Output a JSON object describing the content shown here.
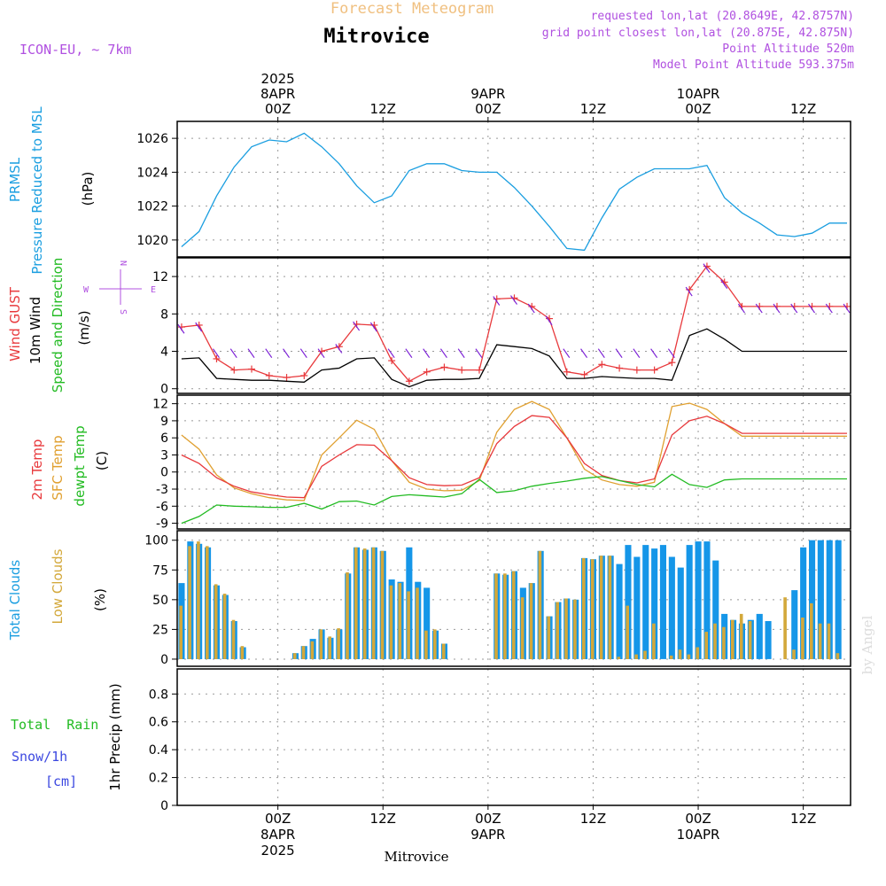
{
  "header": {
    "overlay_title": "Forecast Meteogram",
    "location": "Mitrovice",
    "model": "ICON-EU,  ~ 7km",
    "requested": "requested lon,lat (20.8649E, 42.8757N)",
    "grid_point": "grid point closest lon,lat (20.875E, 42.875N)",
    "point_altitude": "Point Altitude 520m",
    "model_altitude": "Model Point Altitude 593.375m",
    "footer_location": "Mitrovice",
    "watermark": "by Angel"
  },
  "time_axis": {
    "top_labels": [
      {
        "hour": 0,
        "lines": [
          "2025",
          "8APR",
          "00Z"
        ]
      },
      {
        "hour": 12,
        "lines": [
          "12Z"
        ]
      },
      {
        "hour": 24,
        "lines": [
          "9APR",
          "00Z"
        ]
      },
      {
        "hour": 36,
        "lines": [
          "12Z"
        ]
      },
      {
        "hour": 48,
        "lines": [
          "10APR",
          "00Z"
        ]
      },
      {
        "hour": 60,
        "lines": [
          "12Z"
        ]
      }
    ],
    "bottom_labels": [
      {
        "hour": 0,
        "lines": [
          "00Z",
          "8APR",
          "2025"
        ]
      },
      {
        "hour": 12,
        "lines": [
          "12Z"
        ]
      },
      {
        "hour": 24,
        "lines": [
          "00Z",
          "9APR"
        ]
      },
      {
        "hour": 36,
        "lines": [
          "12Z"
        ]
      },
      {
        "hour": 48,
        "lines": [
          "00Z",
          "10APR"
        ]
      },
      {
        "hour": 60,
        "lines": [
          "12Z"
        ]
      }
    ]
  },
  "panels": {
    "pressure": {
      "labels": [
        "PRMSL",
        "Pressure Reduced to MSL"
      ],
      "unit": "(hPa)",
      "yticks": [
        "1020",
        "1022",
        "1024",
        "1026"
      ]
    },
    "wind": {
      "labels": [
        "Wind GUST",
        "10m Wind",
        "Speed and Direction"
      ],
      "unit": "(m/s)",
      "yticks": [
        "0",
        "4",
        "8",
        "12"
      ],
      "compass": {
        "n": "N",
        "s": "S",
        "w": "W",
        "e": "E"
      }
    },
    "temp": {
      "labels": [
        "2m Temp",
        "SFC Temp",
        "dewpt Temp"
      ],
      "unit": "(C)",
      "yticks": [
        "-9",
        "-6",
        "-3",
        "0",
        "3",
        "6",
        "9",
        "12"
      ]
    },
    "clouds": {
      "labels": [
        "Total Clouds",
        "Low Clouds"
      ],
      "unit": "(%)",
      "yticks": [
        "0",
        "25",
        "50",
        "75",
        "100"
      ]
    },
    "precip": {
      "labels": [
        "Total  Rain",
        "Snow/1h",
        "[cm]"
      ],
      "unit": "1hr Precip (mm)",
      "yticks": [
        "0",
        "0.2",
        "0.4",
        "0.6",
        "0.8"
      ]
    }
  },
  "colors": {
    "pressure": "#1a9ee0",
    "gust": "#e8393c",
    "wind": "#000000",
    "arrow": "#7b1fd6",
    "temp2m": "#e8393c",
    "sfc": "#e0a030",
    "dewpt": "#22bb22",
    "total_cloud": "#1596e8",
    "low_cloud": "#d3a83a",
    "title_overlay": "#f0c080",
    "info": "#b050e0",
    "rain_label": "#22bb22",
    "snow_label": "#3c48e0"
  },
  "chart_data": [
    {
      "type": "line",
      "title": "PRMSL Pressure Reduced to MSL",
      "ylabel": "(hPa)",
      "ylim": [
        1019,
        1027
      ],
      "x_hours": [
        -11,
        -9,
        -7,
        -5,
        -3,
        -1,
        1,
        3,
        5,
        7,
        9,
        11,
        13,
        15,
        17,
        19,
        21,
        23,
        25,
        27,
        29,
        31,
        33,
        35,
        37,
        39,
        41,
        43,
        45,
        47,
        49,
        51,
        53,
        55,
        57,
        59,
        61,
        63,
        65
      ],
      "series": [
        {
          "values": [
            1019.6,
            1020.5,
            1022.6,
            1024.3,
            1025.5,
            1025.9,
            1025.8,
            1026.3,
            1025.5,
            1024.5,
            1023.2,
            1022.2,
            1022.6,
            1024.1,
            1024.5,
            1024.5,
            1024.1,
            1024.0,
            1024.0,
            1023.1,
            1022.0,
            1020.8,
            1019.5,
            1019.4,
            1021.3,
            1023.0,
            1023.7,
            1024.2,
            1024.2,
            1024.2,
            1024.4,
            1022.5,
            1021.6,
            1021.0,
            1020.3,
            1020.2,
            1020.4,
            1021.0,
            1021.0
          ]
        }
      ]
    },
    {
      "type": "line",
      "title": "Wind GUST / 10m Wind Speed and Direction",
      "ylabel": "(m/s)",
      "ylim": [
        -0.5,
        14
      ],
      "x_hours": [
        -11,
        -9,
        -7,
        -5,
        -3,
        -1,
        1,
        3,
        5,
        7,
        9,
        11,
        13,
        15,
        17,
        19,
        21,
        23,
        25,
        27,
        29,
        31,
        33,
        35,
        37,
        39,
        41,
        43,
        45,
        47,
        49,
        51,
        53,
        55,
        57,
        59,
        61,
        63,
        65
      ],
      "series": [
        {
          "name": "Wind GUST",
          "values": [
            6.6,
            6.8,
            3.2,
            2.0,
            2.1,
            1.4,
            1.2,
            1.4,
            4.0,
            4.5,
            6.9,
            6.8,
            3.0,
            0.8,
            1.8,
            2.3,
            2.0,
            2.0,
            9.6,
            9.7,
            8.8,
            7.5,
            1.8,
            1.5,
            2.6,
            2.2,
            2.0,
            2.0,
            2.8,
            10.6,
            13.1,
            11.4,
            8.8,
            8.8,
            8.8,
            8.8,
            8.8,
            8.8,
            8.8
          ]
        },
        {
          "name": "10m Wind",
          "values": [
            3.2,
            3.3,
            1.1,
            1.0,
            0.9,
            0.9,
            0.8,
            0.7,
            2.0,
            2.2,
            3.2,
            3.3,
            1.0,
            0.2,
            0.9,
            1.0,
            1.0,
            1.1,
            4.7,
            4.5,
            4.3,
            3.5,
            1.1,
            1.1,
            1.3,
            1.2,
            1.1,
            1.1,
            0.9,
            5.7,
            6.4,
            5.3,
            4.0,
            4.0,
            4.0,
            4.0,
            4.0,
            4.0,
            4.0
          ]
        }
      ]
    },
    {
      "type": "line",
      "title": "2m Temp / SFC Temp / dewpt Temp",
      "ylabel": "(C)",
      "ylim": [
        -10,
        13.5
      ],
      "x_hours": [
        -11,
        -9,
        -7,
        -5,
        -3,
        -1,
        1,
        3,
        5,
        7,
        9,
        11,
        13,
        15,
        17,
        19,
        21,
        23,
        25,
        27,
        29,
        31,
        33,
        35,
        37,
        39,
        41,
        43,
        45,
        47,
        49,
        51,
        53,
        55,
        57,
        59,
        61,
        63,
        65
      ],
      "series": [
        {
          "name": "2m Temp",
          "values": [
            3.0,
            1.5,
            -1.0,
            -2.5,
            -3.5,
            -4.0,
            -4.4,
            -4.5,
            1.0,
            3.0,
            4.8,
            4.7,
            2.0,
            -1.0,
            -2.2,
            -2.4,
            -2.3,
            -1.0,
            5.0,
            8.0,
            9.9,
            9.6,
            6.0,
            1.5,
            -0.6,
            -1.5,
            -1.9,
            -1.2,
            6.5,
            9.0,
            9.8,
            8.5,
            6.8,
            6.8,
            6.8,
            6.8,
            6.8,
            6.8,
            6.8
          ]
        },
        {
          "name": "SFC Temp",
          "values": [
            6.5,
            4.0,
            -0.5,
            -2.8,
            -3.8,
            -4.5,
            -4.9,
            -5.0,
            3.0,
            6.0,
            9.1,
            7.5,
            2.0,
            -1.8,
            -3.0,
            -3.3,
            -3.2,
            -1.5,
            7.0,
            11.0,
            12.4,
            11.0,
            6.0,
            0.5,
            -1.4,
            -2.2,
            -2.5,
            -1.8,
            11.5,
            12.1,
            11.0,
            8.5,
            6.3,
            6.3,
            6.3,
            6.3,
            6.3,
            6.3,
            6.3
          ]
        },
        {
          "name": "dewpt Temp",
          "values": [
            -9.0,
            -7.8,
            -5.8,
            -6.0,
            -6.1,
            -6.2,
            -6.2,
            -5.5,
            -6.5,
            -5.2,
            -5.1,
            -5.8,
            -4.3,
            -4.0,
            -4.2,
            -4.4,
            -3.8,
            -1.3,
            -3.6,
            -3.3,
            -2.5,
            -2.0,
            -1.6,
            -1.1,
            -0.8,
            -1.5,
            -2.2,
            -2.6,
            -0.4,
            -2.2,
            -2.7,
            -1.4,
            -1.2,
            -1.2,
            -1.2,
            -1.2,
            -1.2,
            -1.2,
            -1.2
          ]
        }
      ]
    },
    {
      "type": "bar",
      "title": "Total Clouds / Low Clouds",
      "ylabel": "(%)",
      "ylim": [
        -6,
        108
      ],
      "x_hours": [
        -11,
        -10,
        -9,
        -8,
        -7,
        -6,
        -5,
        -4,
        -3,
        -2,
        -1,
        0,
        1,
        2,
        3,
        4,
        5,
        6,
        7,
        8,
        9,
        10,
        11,
        12,
        13,
        14,
        15,
        16,
        17,
        18,
        19,
        20,
        21,
        22,
        23,
        24,
        25,
        26,
        27,
        28,
        29,
        30,
        31,
        32,
        33,
        34,
        35,
        36,
        37,
        38,
        39,
        40,
        41,
        42,
        43,
        44,
        45,
        46,
        47,
        48,
        49,
        50,
        51,
        52,
        53,
        54,
        55,
        56,
        57,
        58,
        59,
        60,
        61,
        62,
        63,
        64
      ],
      "series": [
        {
          "name": "Total Clouds",
          "values": [
            64,
            99,
            97,
            94,
            62,
            54,
            32,
            10,
            0,
            0,
            0,
            0,
            0,
            5,
            11,
            17,
            25,
            18,
            25,
            72,
            94,
            92,
            94,
            91,
            67,
            65,
            94,
            65,
            60,
            24,
            13,
            0,
            0,
            0,
            0,
            0,
            72,
            71,
            74,
            60,
            64,
            91,
            36,
            48,
            51,
            50,
            85,
            84,
            87,
            87,
            80,
            96,
            86,
            96,
            93,
            96,
            86,
            77,
            96,
            99,
            99,
            83,
            38,
            33,
            30,
            33,
            38,
            32,
            0,
            0,
            58,
            94,
            100,
            100,
            100,
            100
          ]
        },
        {
          "name": "Low Clouds",
          "values": [
            45,
            95,
            99,
            95,
            63,
            55,
            33,
            11,
            0,
            0,
            0,
            0,
            0,
            5,
            11,
            15,
            25,
            19,
            26,
            73,
            94,
            93,
            94,
            91,
            62,
            64,
            57,
            60,
            24,
            25,
            13,
            0,
            0,
            0,
            0,
            0,
            72,
            72,
            74,
            52,
            64,
            91,
            36,
            48,
            51,
            50,
            85,
            84,
            87,
            87,
            2,
            45,
            4,
            7,
            30,
            0,
            3,
            8,
            4,
            10,
            23,
            30,
            27,
            33,
            38,
            32,
            0,
            0,
            0,
            52,
            8,
            35,
            47,
            30,
            30,
            5
          ]
        }
      ]
    },
    {
      "type": "line",
      "title": "1hr Precip (mm)",
      "ylabel": "1hr Precip (mm)",
      "ylim": [
        0,
        0.98
      ],
      "x_hours": [
        -11,
        65
      ],
      "series": [
        {
          "name": "Total Rain",
          "values": [
            0,
            0
          ]
        },
        {
          "name": "Snow/1h",
          "values": [
            0,
            0
          ]
        }
      ]
    }
  ]
}
